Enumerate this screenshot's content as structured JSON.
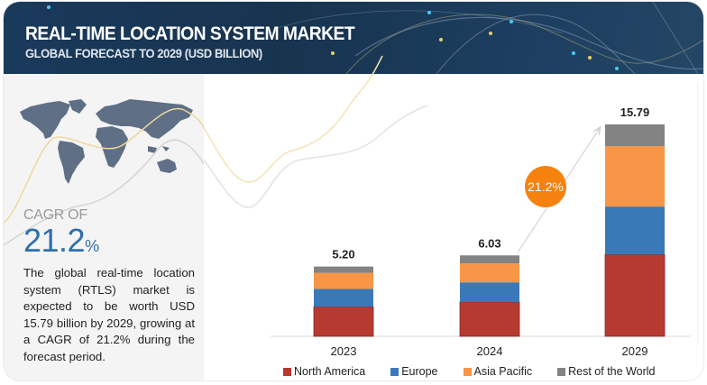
{
  "header": {
    "title": "REAL-TIME LOCATION  SYSTEM MARKET",
    "subtitle": "GLOBAL FORECAST TO 2029 (USD BILLION)"
  },
  "left_panel": {
    "map_icon": "world-map-icon",
    "cagr_label": "CAGR OF",
    "cagr_value": "21.2",
    "cagr_unit": "%",
    "description": "The global real-time location system (RTLS) market is expected to be worth USD 15.79 billion by 2029, growing at a CAGR of 21.2% during the forecast period."
  },
  "colors": {
    "header_bg": "#1a3a5c",
    "panel_bg": "#f4f4f4",
    "cagr_accent": "#2e6fad",
    "cagr_badge": "#f5820f"
  },
  "chart_data": {
    "type": "bar",
    "stacked": true,
    "title": "Real-Time Location System Market",
    "subtitle": "Global Forecast to 2029 (USD Billion)",
    "xlabel": "",
    "ylabel": "",
    "categories": [
      "2023",
      "2024",
      "2029"
    ],
    "totals": [
      "5.20",
      "6.03",
      "15.79"
    ],
    "total_values": [
      5.2,
      6.03,
      15.79
    ],
    "series": [
      {
        "name": "North America",
        "color": "#b63a30",
        "values": [
          2.2,
          2.55,
          6.1
        ]
      },
      {
        "name": "Europe",
        "color": "#3a79b8",
        "values": [
          1.33,
          1.47,
          3.57
        ]
      },
      {
        "name": "Asia Pacific",
        "color": "#f79646",
        "values": [
          1.2,
          1.41,
          4.5
        ]
      },
      {
        "name": "Rest of the World",
        "color": "#838383",
        "values": [
          0.47,
          0.6,
          1.62
        ]
      }
    ],
    "ylim": [
      0,
      16
    ],
    "grid": false,
    "legend_position": "bottom",
    "annotation": {
      "text": "21.2%",
      "type": "cagr-arrow",
      "from": "2024",
      "to": "2029"
    }
  }
}
